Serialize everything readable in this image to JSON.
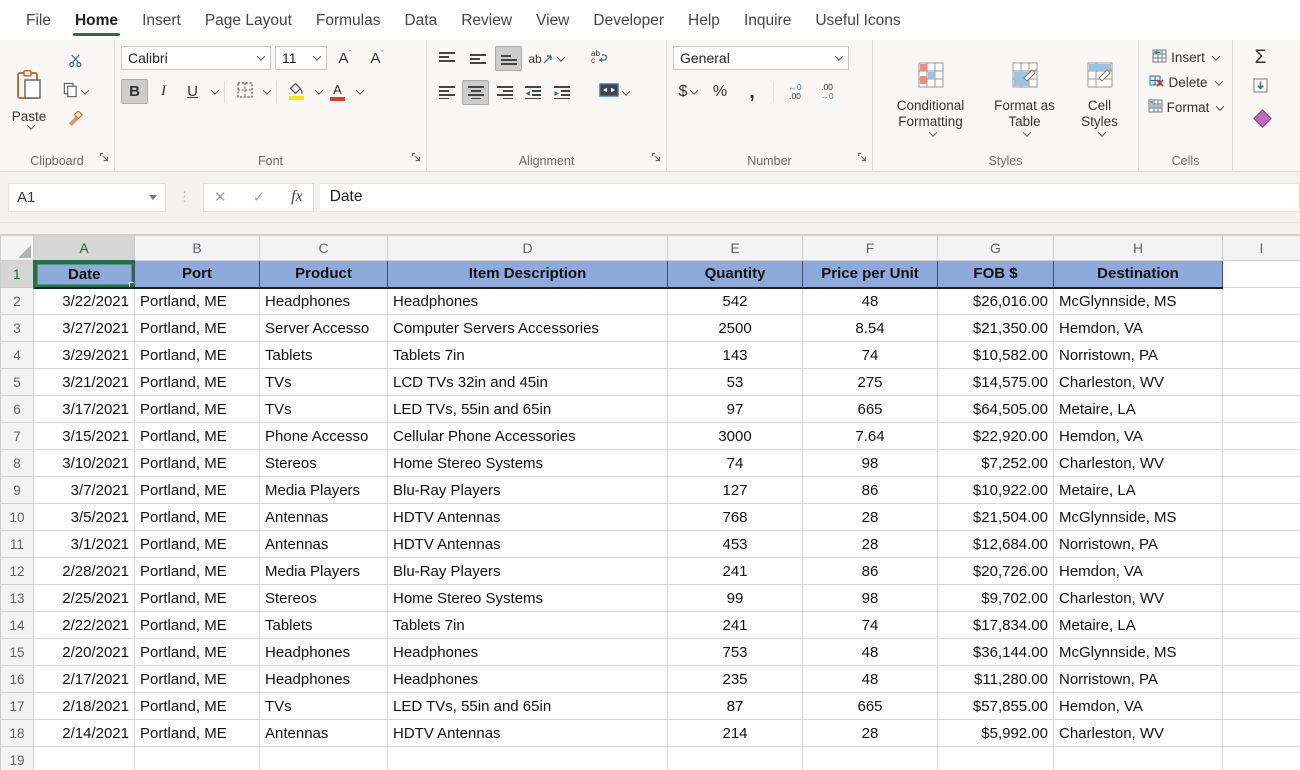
{
  "colors": {
    "accent_green": "#217346",
    "header_blue": "#8eaadb",
    "fill_yellow": "#ffe400",
    "font_red": "#e03c32"
  },
  "tabs": [
    "File",
    "Home",
    "Insert",
    "Page Layout",
    "Formulas",
    "Data",
    "Review",
    "View",
    "Developer",
    "Help",
    "Inquire",
    "Useful Icons"
  ],
  "active_tab": "Home",
  "ribbon": {
    "clipboard": {
      "paste": "Paste",
      "label": "Clipboard"
    },
    "font": {
      "font_name": "Calibri",
      "font_size": "11",
      "bold": "B",
      "italic": "I",
      "underline": "U",
      "increase": "A",
      "decrease": "A",
      "font_color_glyph": "A",
      "label": "Font"
    },
    "alignment": {
      "orientation_glyph": "ab",
      "wrap_glyph": "ab",
      "label": "Alignment"
    },
    "number": {
      "format": "General",
      "currency": "$",
      "percent": "%",
      "comma": ",",
      "inc_dec_top": "←0",
      "inc_dec_bot": ".00",
      "dec_dec_top": ".00",
      "dec_dec_bot": "→0",
      "label": "Number"
    },
    "styles": {
      "conditional_formatting": "Conditional Formatting",
      "format_as_table": "Format as Table",
      "cell_styles": "Cell Styles",
      "label": "Styles"
    },
    "cells": {
      "insert": "Insert",
      "delete": "Delete",
      "format": "Format",
      "label": "Cells"
    },
    "editing": {
      "autosum_glyph": "Σ"
    }
  },
  "formula_bar": {
    "name_box": "A1",
    "cancel_glyph": "✕",
    "enter_glyph": "✓",
    "fx_glyph": "fx",
    "content": "Date"
  },
  "grid": {
    "column_letters": [
      "A",
      "B",
      "C",
      "D",
      "E",
      "F",
      "G",
      "H",
      "I"
    ],
    "selected_column": "A",
    "selected_row": "1",
    "selected_cell": "A1",
    "header_row": [
      "Date",
      "Port",
      "Product",
      "Item Description",
      "Quantity",
      "Price per Unit",
      "FOB $",
      "Destination"
    ],
    "rows": [
      [
        "3/22/2021",
        "Portland, ME",
        "Headphones",
        "Headphones",
        "542",
        "48",
        "$26,016.00",
        "McGlynnside, MS"
      ],
      [
        "3/27/2021",
        "Portland, ME",
        "Server Accesso",
        "Computer Servers Accessories",
        "2500",
        "8.54",
        "$21,350.00",
        "Hemdon, VA"
      ],
      [
        "3/29/2021",
        "Portland, ME",
        "Tablets",
        "Tablets 7in",
        "143",
        "74",
        "$10,582.00",
        "Norristown, PA"
      ],
      [
        "3/21/2021",
        "Portland, ME",
        "TVs",
        "LCD TVs 32in and 45in",
        "53",
        "275",
        "$14,575.00",
        "Charleston, WV"
      ],
      [
        "3/17/2021",
        "Portland, ME",
        "TVs",
        "LED TVs, 55in and 65in",
        "97",
        "665",
        "$64,505.00",
        "Metaire, LA"
      ],
      [
        "3/15/2021",
        "Portland, ME",
        "Phone Accesso",
        "Cellular Phone Accessories",
        "3000",
        "7.64",
        "$22,920.00",
        "Hemdon, VA"
      ],
      [
        "3/10/2021",
        "Portland, ME",
        "Stereos",
        "Home Stereo Systems",
        "74",
        "98",
        "$7,252.00",
        "Charleston, WV"
      ],
      [
        "3/7/2021",
        "Portland, ME",
        "Media Players",
        "Blu-Ray Players",
        "127",
        "86",
        "$10,922.00",
        "Metaire, LA"
      ],
      [
        "3/5/2021",
        "Portland, ME",
        "Antennas",
        "HDTV Antennas",
        "768",
        "28",
        "$21,504.00",
        "McGlynnside, MS"
      ],
      [
        "3/1/2021",
        "Portland, ME",
        "Antennas",
        "HDTV Antennas",
        "453",
        "28",
        "$12,684.00",
        "Norristown, PA"
      ],
      [
        "2/28/2021",
        "Portland, ME",
        "Media Players",
        "Blu-Ray Players",
        "241",
        "86",
        "$20,726.00",
        "Hemdon, VA"
      ],
      [
        "2/25/2021",
        "Portland, ME",
        "Stereos",
        "Home Stereo Systems",
        "99",
        "98",
        "$9,702.00",
        "Charleston, WV"
      ],
      [
        "2/22/2021",
        "Portland, ME",
        "Tablets",
        "Tablets 7in",
        "241",
        "74",
        "$17,834.00",
        "Metaire, LA"
      ],
      [
        "2/20/2021",
        "Portland, ME",
        "Headphones",
        "Headphones",
        "753",
        "48",
        "$36,144.00",
        "McGlynnside, MS"
      ],
      [
        "2/17/2021",
        "Portland, ME",
        "Headphones",
        "Headphones",
        "235",
        "48",
        "$11,280.00",
        "Norristown, PA"
      ],
      [
        "2/18/2021",
        "Portland, ME",
        "TVs",
        "LED TVs, 55in and 65in",
        "87",
        "665",
        "$57,855.00",
        "Hemdon, VA"
      ],
      [
        "2/14/2021",
        "Portland, ME",
        "Antennas",
        "HDTV Antennas",
        "214",
        "28",
        "$5,992.00",
        "Charleston, WV"
      ]
    ],
    "trailing_empty_row_number": "19"
  }
}
